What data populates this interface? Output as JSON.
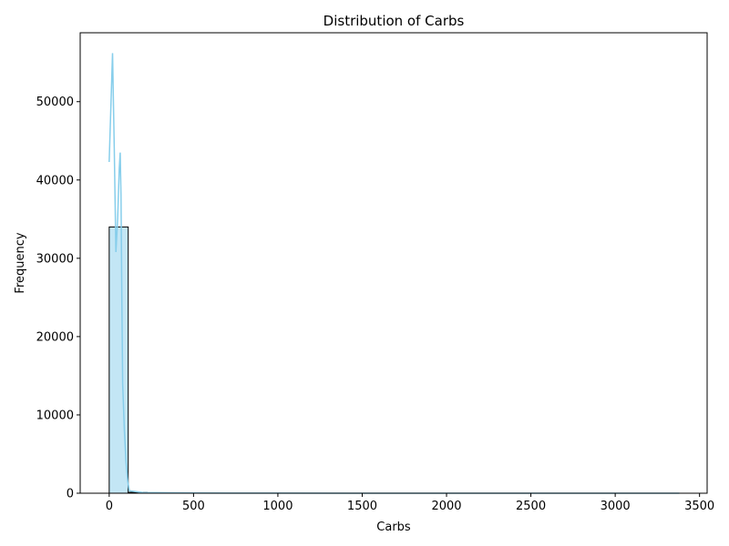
{
  "chart_data": {
    "type": "bar",
    "title": "Distribution of Carbs",
    "xlabel": "Carbs",
    "ylabel": "Frequency",
    "xlim": [
      -172,
      3545
    ],
    "ylim": [
      0,
      58800
    ],
    "xticks": [
      0,
      500,
      1000,
      1500,
      2000,
      2500,
      3000,
      3500
    ],
    "yticks": [
      0,
      10000,
      20000,
      30000,
      40000,
      50000
    ],
    "bin_width": 112.7,
    "bins": [
      {
        "x0": 0,
        "x1": 112.7,
        "count": 34000
      },
      {
        "x0": 112.7,
        "x1": 225.4,
        "count": 110
      },
      {
        "x0": 225.4,
        "x1": 338.1,
        "count": 20
      }
    ],
    "kde": {
      "name": "KDE",
      "x": [
        0,
        20,
        30,
        40,
        50,
        60,
        65,
        70,
        75,
        80,
        90,
        100,
        110,
        120,
        200,
        500,
        1000,
        2000,
        3000,
        3380
      ],
      "y": [
        42300,
        56200,
        44000,
        30800,
        35000,
        41500,
        43500,
        38000,
        25000,
        14000,
        8000,
        4000,
        1500,
        300,
        80,
        20,
        10,
        5,
        2,
        0
      ]
    },
    "colors": {
      "bar_fill": "#87ceeb",
      "bar_fill_opacity": 0.5,
      "bar_edge": "#000000",
      "kde_line": "#87ceeb"
    },
    "grid": false,
    "legend": "none"
  }
}
